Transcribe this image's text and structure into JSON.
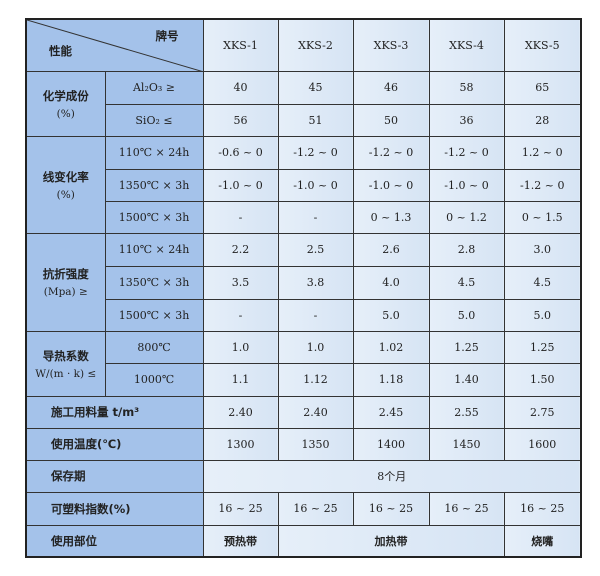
{
  "header": {
    "brand_label": "牌号",
    "property_label": "性能",
    "grades": [
      "XKS-1",
      "XKS-2",
      "XKS-3",
      "XKS-4",
      "XKS-5"
    ]
  },
  "chem": {
    "label": "化学成份",
    "unit": "(%)",
    "rows": [
      {
        "name": "Al₂O₃ ≥",
        "values": [
          "40",
          "45",
          "46",
          "58",
          "65"
        ]
      },
      {
        "name": "SiO₂ ≤",
        "values": [
          "56",
          "51",
          "50",
          "36",
          "28"
        ]
      }
    ]
  },
  "linear": {
    "label": "线变化率",
    "unit": "(%)",
    "rows": [
      {
        "name": "110℃ × 24h",
        "values": [
          "-0.6 ~ 0",
          "-1.2 ~ 0",
          "-1.2 ~ 0",
          "-1.2 ~ 0",
          "1.2 ~ 0"
        ]
      },
      {
        "name": "1350℃ × 3h",
        "values": [
          "-1.0 ~ 0",
          "-1.0 ~ 0",
          "-1.0 ~ 0",
          "-1.0 ~ 0",
          "-1.2 ~ 0"
        ]
      },
      {
        "name": "1500℃ × 3h",
        "values": [
          "-",
          "-",
          "0 ~ 1.3",
          "0 ~ 1.2",
          "0 ~ 1.5"
        ]
      }
    ]
  },
  "flex": {
    "label": "抗折强度",
    "unit": "(Mpa) ≥",
    "rows": [
      {
        "name": "110℃ × 24h",
        "values": [
          "2.2",
          "2.5",
          "2.6",
          "2.8",
          "3.0"
        ]
      },
      {
        "name": "1350℃ × 3h",
        "values": [
          "3.5",
          "3.8",
          "4.0",
          "4.5",
          "4.5"
        ]
      },
      {
        "name": "1500℃ × 3h",
        "values": [
          "-",
          "-",
          "5.0",
          "5.0",
          "5.0"
        ]
      }
    ]
  },
  "thermal": {
    "label": "导热系数",
    "unit": "W/(m · k) ≤",
    "rows": [
      {
        "name": "800℃",
        "values": [
          "1.0",
          "1.0",
          "1.02",
          "1.25",
          "1.25"
        ]
      },
      {
        "name": "1000℃",
        "values": [
          "1.1",
          "1.12",
          "1.18",
          "1.40",
          "1.50"
        ]
      }
    ]
  },
  "usage_amount": {
    "label": "施工用料量 t/m³",
    "values": [
      "2.40",
      "2.40",
      "2.45",
      "2.55",
      "2.75"
    ]
  },
  "temperature": {
    "label": "使用温度(℃)",
    "values": [
      "1300",
      "1350",
      "1400",
      "1450",
      "1600"
    ]
  },
  "shelf": {
    "label": "保存期",
    "value": "8个月"
  },
  "plastic": {
    "label": "可塑料指数(%)",
    "values": [
      "16 ~ 25",
      "16 ~ 25",
      "16 ~ 25",
      "16 ~ 25",
      "16 ~ 25"
    ]
  },
  "location": {
    "label": "使用部位",
    "values": [
      "预热带",
      "加热带",
      "烧嘴"
    ]
  }
}
